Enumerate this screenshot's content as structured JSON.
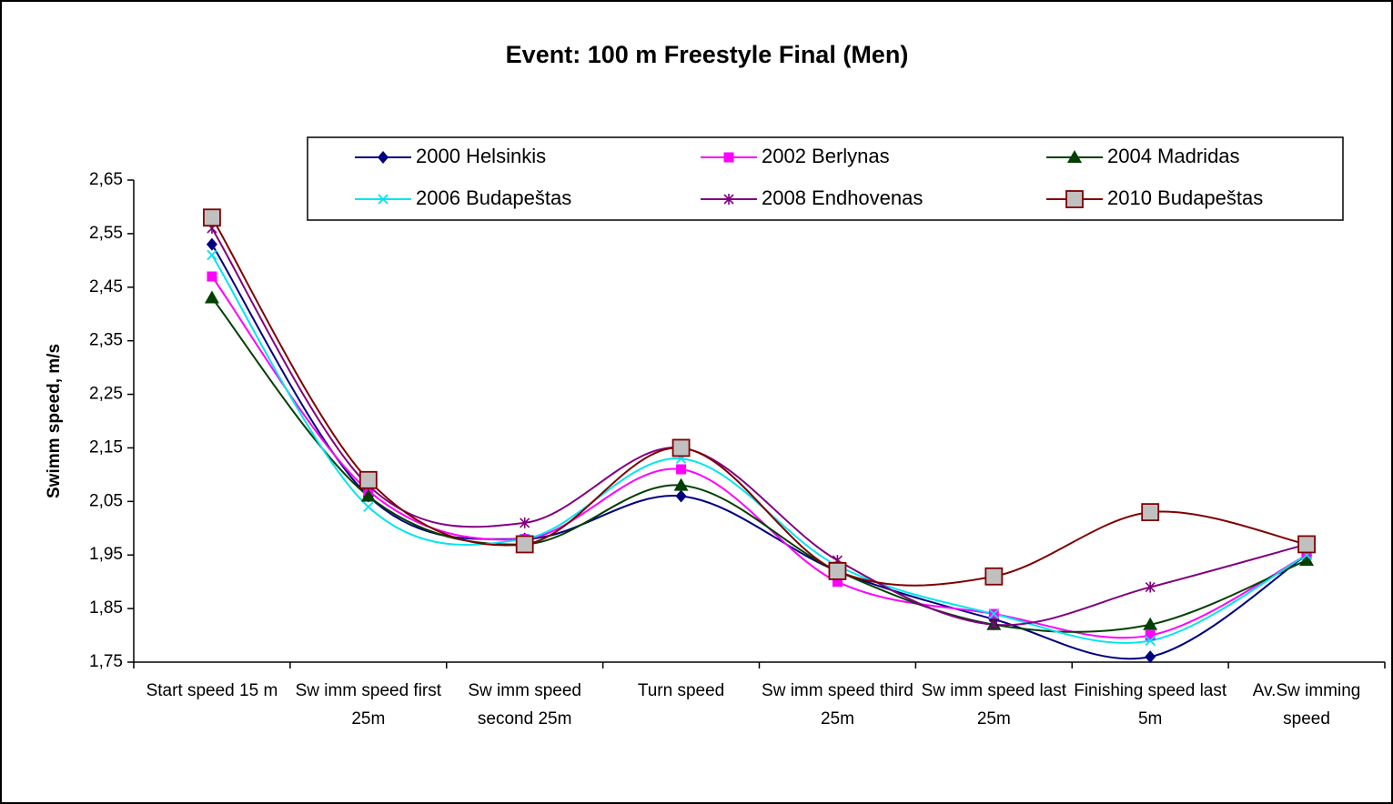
{
  "chart_data": {
    "type": "line",
    "title": "Event: 100 m Freestyle Final (Men)",
    "y_label": "Swimm speed, m/s",
    "categories": [
      "Start speed 15 m",
      "Sw imm speed first 25m",
      "Sw imm speed second 25m",
      "Turn speed",
      "Sw imm speed third 25m",
      "Sw imm speed last 25m",
      "Finishing speed last 5m",
      "Av.Sw imming speed"
    ],
    "ylim": [
      1.75,
      2.65
    ],
    "yticks": [
      {
        "value": 1.75,
        "label": "1,75"
      },
      {
        "value": 1.85,
        "label": "1,85"
      },
      {
        "value": 1.95,
        "label": "1,95"
      },
      {
        "value": 2.05,
        "label": "2,05"
      },
      {
        "value": 2.15,
        "label": "2,15"
      },
      {
        "value": 2.25,
        "label": "2,25"
      },
      {
        "value": 2.35,
        "label": "2,35"
      },
      {
        "value": 2.45,
        "label": "2,45"
      },
      {
        "value": 2.55,
        "label": "2,55"
      },
      {
        "value": 2.65,
        "label": "2,65"
      }
    ],
    "grid": false,
    "smooth": true,
    "legend": "top",
    "series": [
      {
        "name": "2000 Helsinkis",
        "color": "#000080",
        "marker": "diamond",
        "values": [
          2.53,
          2.06,
          1.98,
          2.06,
          1.92,
          1.83,
          1.76,
          1.95
        ]
      },
      {
        "name": "2002 Berlynas",
        "color": "#ff00ff",
        "marker": "square",
        "values": [
          2.47,
          2.07,
          1.98,
          2.11,
          1.9,
          1.84,
          1.8,
          1.95
        ]
      },
      {
        "name": "2004 Madridas",
        "color": "#004000",
        "marker": "triangle",
        "values": [
          2.43,
          2.06,
          1.97,
          2.08,
          1.92,
          1.82,
          1.82,
          1.94
        ]
      },
      {
        "name": "2006 Budapeštas",
        "color": "#00e5ee",
        "marker": "x",
        "values": [
          2.51,
          2.04,
          1.98,
          2.13,
          1.93,
          1.84,
          1.79,
          1.95
        ]
      },
      {
        "name": "2008 Endhovenas",
        "color": "#800080",
        "marker": "star",
        "values": [
          2.56,
          2.08,
          2.01,
          2.15,
          1.94,
          1.82,
          1.89,
          1.97
        ]
      },
      {
        "name": "2010 Budapeštas",
        "color": "#800000",
        "marker": "bigsquare",
        "values": [
          2.58,
          2.09,
          1.97,
          2.15,
          1.92,
          1.91,
          2.03,
          1.97
        ]
      }
    ]
  }
}
